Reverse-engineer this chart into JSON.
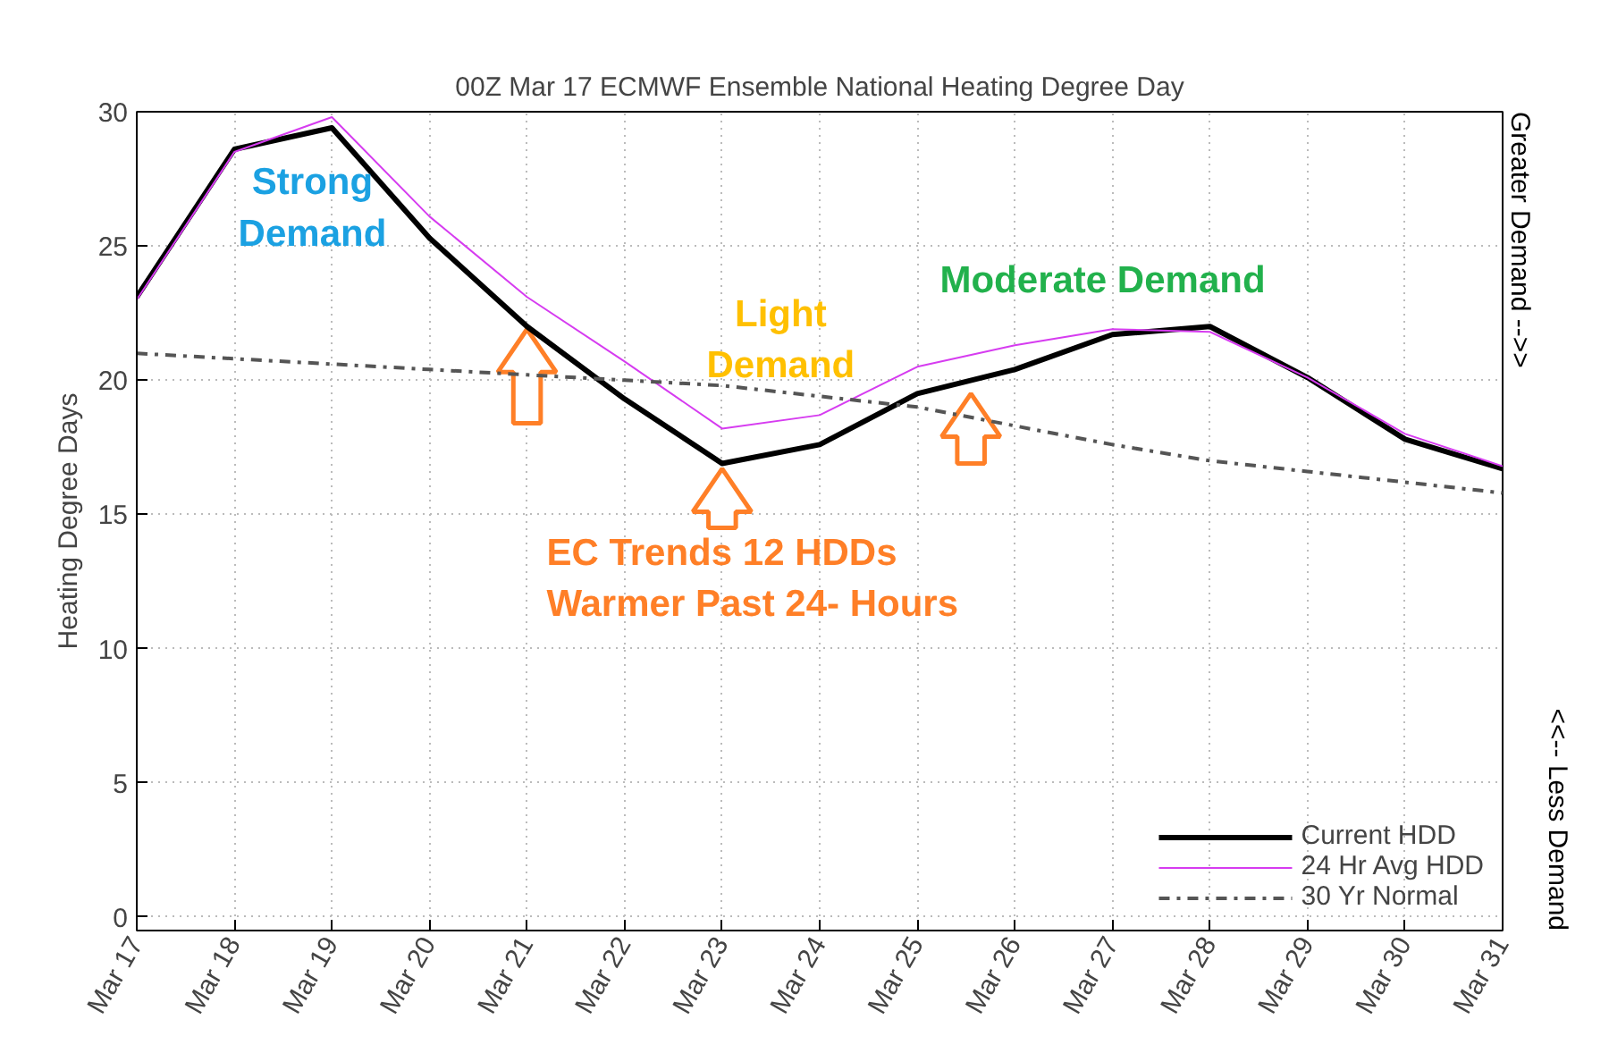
{
  "chart_data": {
    "type": "line",
    "title": "00Z Mar 17 ECMWF Ensemble National Heating Degree Day",
    "ylabel": "Heating Degree Days",
    "categories": [
      "Mar 17",
      "Mar 18",
      "Mar 19",
      "Mar 20",
      "Mar 21",
      "Mar 22",
      "Mar 23",
      "Mar 24",
      "Mar 25",
      "Mar 26",
      "Mar 27",
      "Mar 28",
      "Mar 29",
      "Mar 30",
      "Mar 31"
    ],
    "series": [
      {
        "name": "Current HDD",
        "color": "#000000",
        "line_style": "solid",
        "values": [
          23.1,
          28.6,
          29.4,
          25.3,
          22.0,
          19.3,
          16.9,
          17.6,
          19.5,
          20.4,
          21.7,
          22.0,
          20.1,
          17.8,
          16.7
        ]
      },
      {
        "name": "24 Hr Avg HDD",
        "color": "#d63cf0",
        "line_style": "solid",
        "values": [
          23.0,
          28.5,
          29.8,
          26.1,
          23.1,
          20.7,
          18.2,
          18.7,
          20.5,
          21.3,
          21.9,
          21.8,
          20.1,
          18.0,
          16.8
        ]
      },
      {
        "name": "30 Yr Normal",
        "color": "#555555",
        "line_style": "dashdot",
        "values": [
          21.0,
          20.8,
          20.6,
          20.4,
          20.2,
          20.0,
          19.8,
          19.4,
          19.0,
          18.3,
          17.6,
          17.0,
          16.6,
          16.2,
          15.8
        ]
      }
    ],
    "ylim": [
      -0.5,
      30
    ],
    "yticks": [
      0,
      5,
      10,
      15,
      20,
      25,
      30
    ],
    "annotations": [
      "Strong\nDemand",
      "Light\nDemand",
      "Moderate Demand",
      {
        "text": "EC Trends 12 HDDs\nWarmer Past 24- Hours",
        "x": "Mar 23",
        "y": 16.9
      },
      "Greater Demand -->>",
      "<<-- Less Demand"
    ],
    "grid": true,
    "legend": "bottom right",
    "marker": "none"
  }
}
